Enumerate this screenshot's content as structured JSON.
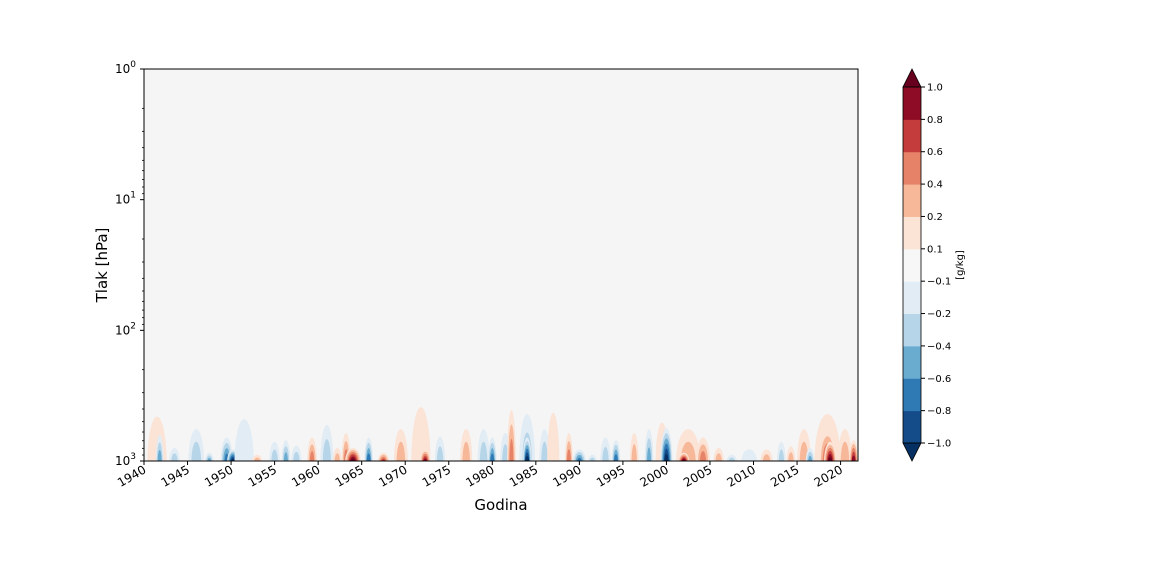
{
  "chart_data": {
    "type": "heatmap",
    "title": "",
    "xlabel": "Godina",
    "ylabel": "Tlak [hPa]",
    "x_range": [
      1940,
      2022
    ],
    "x_ticks": [
      "1940",
      "1945",
      "1950",
      "1955",
      "1960",
      "1965",
      "1970",
      "1975",
      "1980",
      "1985",
      "1990",
      "1995",
      "2000",
      "2005",
      "2010",
      "2015",
      "2020"
    ],
    "y_scale": "log",
    "y_inverted": true,
    "y_range": [
      1000,
      1
    ],
    "y_ticks": [
      {
        "value": 1,
        "base": "10",
        "exp": "0"
      },
      {
        "value": 10,
        "base": "10",
        "exp": "1"
      },
      {
        "value": 100,
        "base": "10",
        "exp": "2"
      },
      {
        "value": 1000,
        "base": "10",
        "exp": "3"
      }
    ],
    "grid": false,
    "background_color": "#f5f5f5",
    "colorbar": {
      "label": "[g/kg]",
      "levels": [
        -1.0,
        -0.8,
        -0.6,
        -0.4,
        -0.2,
        -0.1,
        0.1,
        0.2,
        0.4,
        0.6,
        0.8,
        1.0
      ],
      "tick_labels": [
        "−1.0",
        "−0.8",
        "−0.6",
        "−0.4",
        "−0.2",
        "−0.1",
        "0.1",
        "0.2",
        "0.4",
        "0.6",
        "0.8",
        "1.0"
      ],
      "colors": [
        "#053061",
        "#134c88",
        "#2f79b5",
        "#6aabd0",
        "#b6d5e8",
        "#e1ecf4",
        "#f7f7f7",
        "#fbe3d6",
        "#f7b799",
        "#e58268",
        "#c43c3c",
        "#8e0c25",
        "#67001f"
      ],
      "extend": "both"
    },
    "anomalies": [
      {
        "year": 1941.5,
        "p_top": 450,
        "value": 0.1,
        "width": 2.2
      },
      {
        "year": 1941.8,
        "p_top": 620,
        "value": -0.4,
        "width": 0.9
      },
      {
        "year": 1943.5,
        "p_top": 780,
        "value": -0.2,
        "width": 1.2
      },
      {
        "year": 1946.0,
        "p_top": 560,
        "value": -0.2,
        "width": 1.8
      },
      {
        "year": 1947.5,
        "p_top": 850,
        "value": -0.4,
        "width": 1.0
      },
      {
        "year": 1949.5,
        "p_top": 650,
        "value": -0.6,
        "width": 1.4
      },
      {
        "year": 1950.2,
        "p_top": 800,
        "value": -1.0,
        "width": 1.3
      },
      {
        "year": 1951.5,
        "p_top": 470,
        "value": -0.1,
        "width": 2.2
      },
      {
        "year": 1953.0,
        "p_top": 880,
        "value": 0.2,
        "width": 1.2
      },
      {
        "year": 1955.0,
        "p_top": 700,
        "value": -0.2,
        "width": 1.2
      },
      {
        "year": 1956.3,
        "p_top": 680,
        "value": -0.4,
        "width": 1.0
      },
      {
        "year": 1957.5,
        "p_top": 750,
        "value": -0.2,
        "width": 1.2
      },
      {
        "year": 1959.3,
        "p_top": 650,
        "value": 0.4,
        "width": 1.1
      },
      {
        "year": 1961.0,
        "p_top": 520,
        "value": -0.2,
        "width": 1.5
      },
      {
        "year": 1962.2,
        "p_top": 780,
        "value": 0.2,
        "width": 1.0
      },
      {
        "year": 1963.2,
        "p_top": 600,
        "value": 0.4,
        "width": 1.0
      },
      {
        "year": 1964.0,
        "p_top": 780,
        "value": 1.0,
        "width": 1.8
      },
      {
        "year": 1965.8,
        "p_top": 650,
        "value": -0.6,
        "width": 1.0
      },
      {
        "year": 1967.5,
        "p_top": 850,
        "value": 0.6,
        "width": 1.3
      },
      {
        "year": 1969.5,
        "p_top": 560,
        "value": 0.2,
        "width": 1.6
      },
      {
        "year": 1971.8,
        "p_top": 380,
        "value": 0.1,
        "width": 2.2
      },
      {
        "year": 1972.3,
        "p_top": 800,
        "value": 0.8,
        "width": 1.2
      },
      {
        "year": 1974.0,
        "p_top": 640,
        "value": -0.2,
        "width": 1.2
      },
      {
        "year": 1977.0,
        "p_top": 560,
        "value": 0.2,
        "width": 1.4
      },
      {
        "year": 1979.0,
        "p_top": 560,
        "value": -0.2,
        "width": 1.4
      },
      {
        "year": 1980.0,
        "p_top": 650,
        "value": -0.6,
        "width": 1.0
      },
      {
        "year": 1981.5,
        "p_top": 600,
        "value": -0.2,
        "width": 1.2
      },
      {
        "year": 1982.2,
        "p_top": 400,
        "value": 0.4,
        "width": 1.0
      },
      {
        "year": 1984.0,
        "p_top": 430,
        "value": -0.2,
        "width": 1.8
      },
      {
        "year": 1984.0,
        "p_top": 650,
        "value": -1.0,
        "width": 1.0
      },
      {
        "year": 1986.0,
        "p_top": 560,
        "value": -0.2,
        "width": 1.2
      },
      {
        "year": 1987.0,
        "p_top": 420,
        "value": 0.1,
        "width": 1.4
      },
      {
        "year": 1988.8,
        "p_top": 600,
        "value": 0.4,
        "width": 0.9
      },
      {
        "year": 1990.0,
        "p_top": 800,
        "value": -0.6,
        "width": 1.5
      },
      {
        "year": 1991.5,
        "p_top": 880,
        "value": -0.2,
        "width": 1.0
      },
      {
        "year": 1993.0,
        "p_top": 650,
        "value": -0.2,
        "width": 1.2
      },
      {
        "year": 1994.2,
        "p_top": 680,
        "value": -0.6,
        "width": 1.0
      },
      {
        "year": 1996.3,
        "p_top": 600,
        "value": 0.2,
        "width": 1.0
      },
      {
        "year": 1998.0,
        "p_top": 560,
        "value": -0.4,
        "width": 1.0
      },
      {
        "year": 1999.5,
        "p_top": 500,
        "value": 0.1,
        "width": 1.5
      },
      {
        "year": 2000.0,
        "p_top": 550,
        "value": -1.0,
        "width": 1.4
      },
      {
        "year": 2002.5,
        "p_top": 560,
        "value": 0.2,
        "width": 2.8
      },
      {
        "year": 2002.0,
        "p_top": 850,
        "value": 1.0,
        "width": 1.3
      },
      {
        "year": 2004.2,
        "p_top": 650,
        "value": 0.4,
        "width": 1.6
      },
      {
        "year": 2006.0,
        "p_top": 780,
        "value": 0.2,
        "width": 1.2
      },
      {
        "year": 2007.5,
        "p_top": 880,
        "value": -0.2,
        "width": 1.2
      },
      {
        "year": 2009.5,
        "p_top": 800,
        "value": -0.1,
        "width": 1.8
      },
      {
        "year": 2011.5,
        "p_top": 800,
        "value": 0.2,
        "width": 1.4
      },
      {
        "year": 2013.2,
        "p_top": 700,
        "value": -0.2,
        "width": 1.0
      },
      {
        "year": 2014.3,
        "p_top": 760,
        "value": 0.2,
        "width": 1.0
      },
      {
        "year": 2015.8,
        "p_top": 560,
        "value": 0.2,
        "width": 1.6
      },
      {
        "year": 2016.5,
        "p_top": 780,
        "value": -0.4,
        "width": 1.0
      },
      {
        "year": 2018.5,
        "p_top": 430,
        "value": 0.2,
        "width": 3.0
      },
      {
        "year": 2018.5,
        "p_top": 560,
        "value": 0.6,
        "width": 2.0
      },
      {
        "year": 2018.8,
        "p_top": 700,
        "value": 1.0,
        "width": 1.4
      },
      {
        "year": 2020.5,
        "p_top": 560,
        "value": 0.2,
        "width": 1.6
      },
      {
        "year": 2021.5,
        "p_top": 680,
        "value": 0.8,
        "width": 1.0
      }
    ]
  }
}
